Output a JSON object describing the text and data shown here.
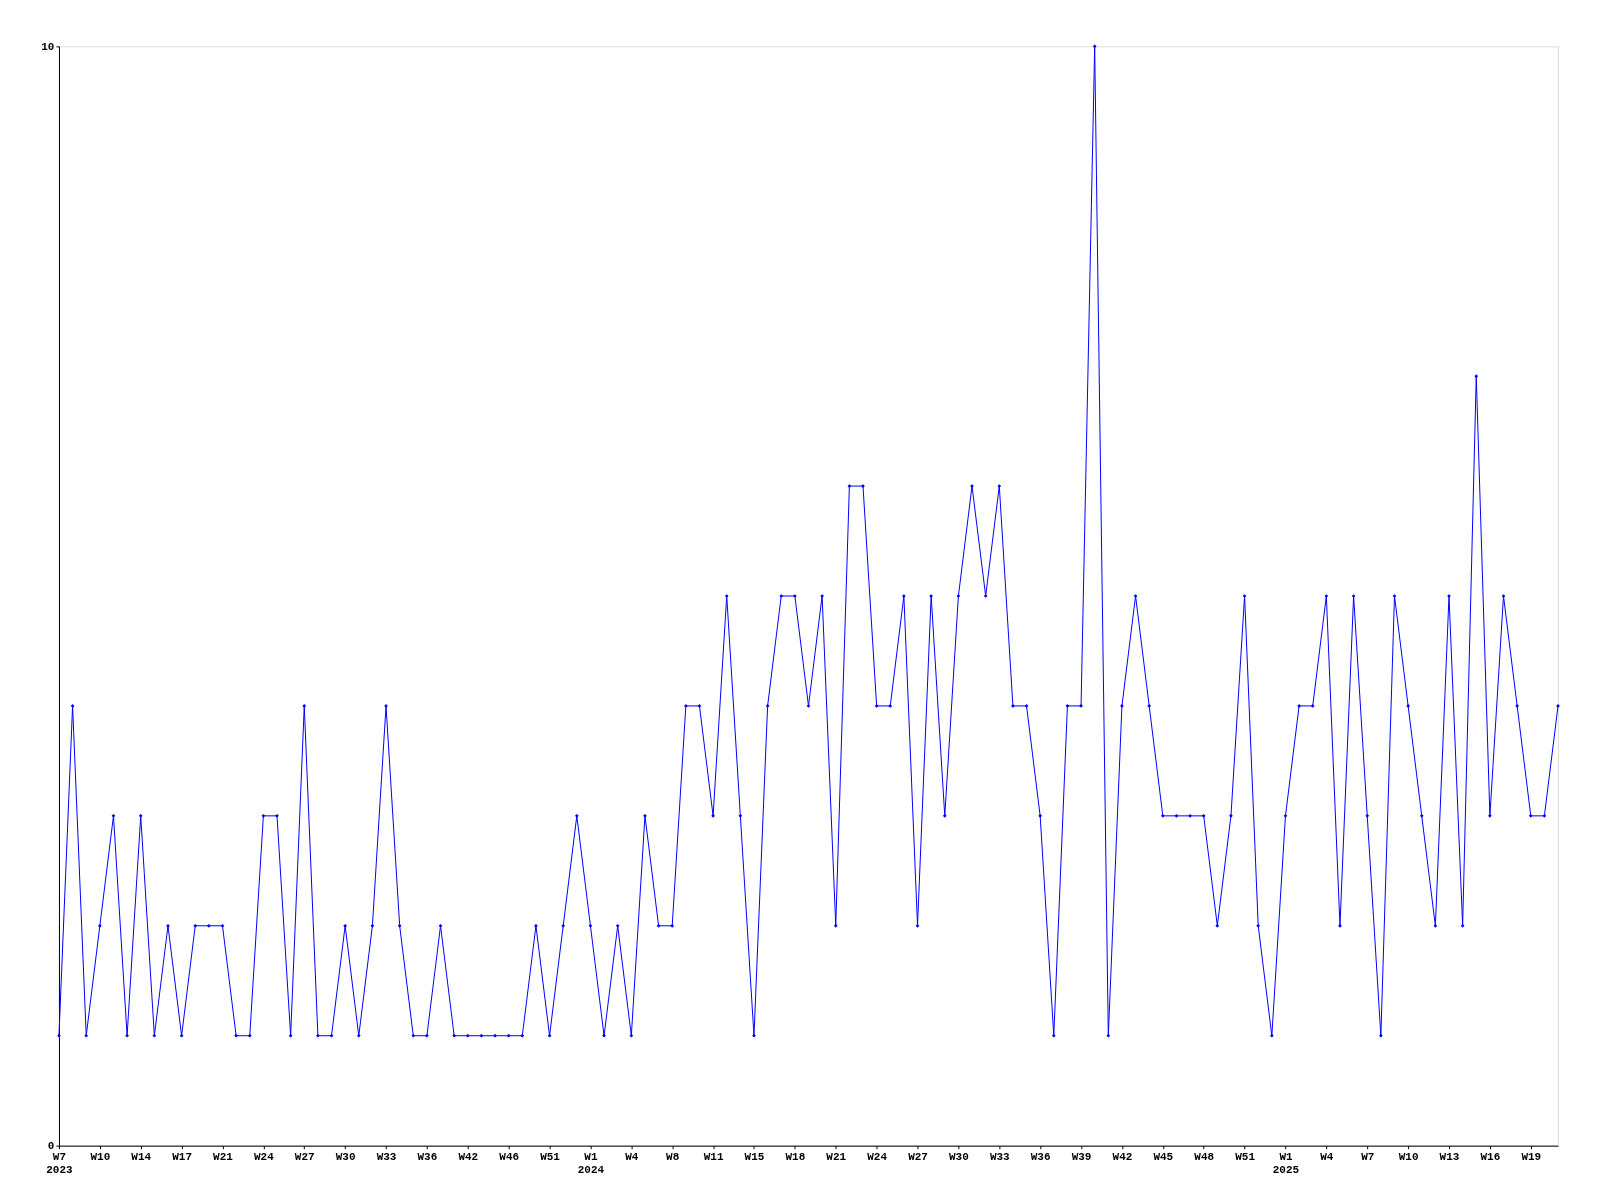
{
  "chart_data": {
    "type": "line",
    "categories": [
      "W7\n2023",
      null,
      null,
      "W10",
      null,
      null,
      "W14",
      null,
      null,
      "W17",
      null,
      null,
      "W21",
      null,
      null,
      "W24",
      null,
      null,
      "W27",
      null,
      null,
      "W30",
      null,
      null,
      "W33",
      null,
      null,
      "W36",
      null,
      null,
      "W42",
      null,
      null,
      "W46",
      null,
      null,
      "W51",
      null,
      null,
      "W1\n2024",
      null,
      null,
      "W4",
      null,
      null,
      "W8",
      null,
      null,
      "W11",
      null,
      null,
      "W15",
      null,
      null,
      "W18",
      null,
      null,
      "W21",
      null,
      null,
      "W24",
      null,
      null,
      "W27",
      null,
      null,
      "W30",
      null,
      null,
      "W33",
      null,
      null,
      "W36",
      null,
      null,
      "W39",
      null,
      null,
      "W42",
      null,
      null,
      "W45",
      null,
      null,
      "W48",
      null,
      null,
      "W51",
      null,
      null,
      "W1\n2025",
      null,
      null,
      "W4",
      null,
      null,
      "W7",
      null,
      null,
      "W10",
      null,
      null,
      "W13",
      null,
      null,
      "W16",
      null,
      null,
      "W19",
      null,
      null
    ],
    "series": [
      {
        "color": "#0000ff",
        "values": [
          1,
          4,
          1,
          2,
          3,
          1,
          3,
          1,
          2,
          1,
          2,
          2,
          2,
          1,
          1,
          3,
          3,
          1,
          4,
          1,
          1,
          2,
          1,
          2,
          4,
          2,
          1,
          1,
          2,
          1,
          1,
          1,
          1,
          1,
          1,
          2,
          1,
          2,
          3,
          2,
          1,
          2,
          1,
          3,
          2,
          2,
          4,
          4,
          3,
          5,
          3,
          1,
          4,
          5,
          5,
          4,
          5,
          2,
          6,
          6,
          4,
          4,
          5,
          2,
          5,
          3,
          5,
          6,
          5,
          6,
          4,
          4,
          3,
          1,
          4,
          4,
          10,
          1,
          4,
          5,
          4,
          3,
          3,
          3,
          3,
          2,
          3,
          5,
          2,
          1,
          3,
          4,
          4,
          5,
          2,
          5,
          3,
          1,
          5,
          4,
          3,
          2,
          5,
          2,
          7,
          3,
          5,
          4,
          3,
          3,
          4
        ]
      }
    ],
    "ylim": [
      0,
      10
    ],
    "yticks": [
      0,
      10
    ],
    "grid": false,
    "marker": "diamond",
    "line_style": "solid"
  }
}
